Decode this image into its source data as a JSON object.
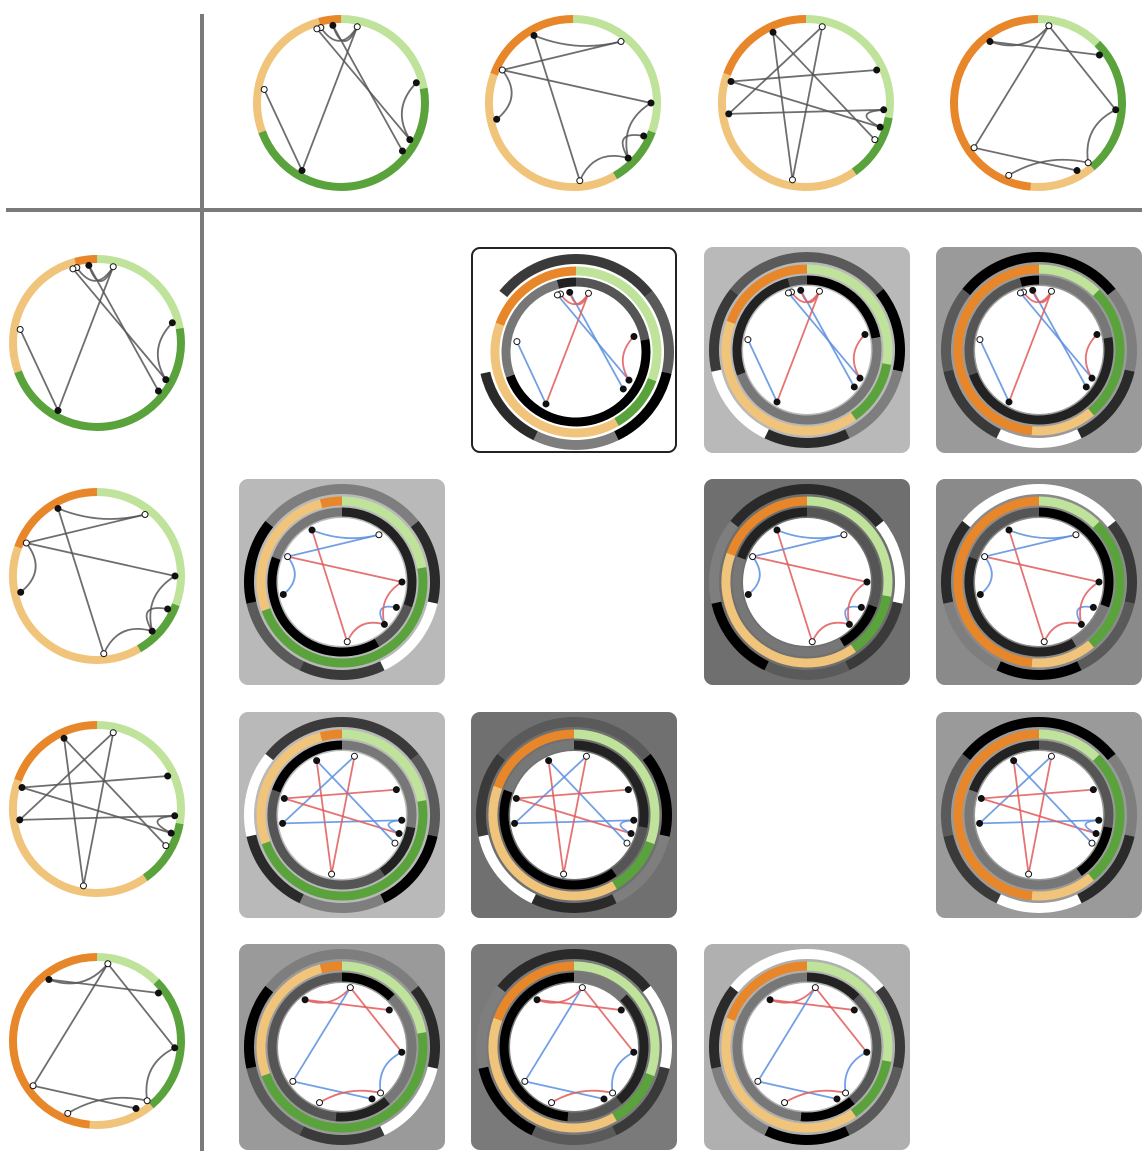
{
  "palette": {
    "dark_orange": "#e8862a",
    "light_orange": "#f0c47a",
    "light_green": "#bfe39b",
    "dark_green": "#5aa33c",
    "edge_gray": "#555555",
    "edge_red": "#e05a5a",
    "edge_blue": "#5a8ee0",
    "separator": "#7a7a7a"
  },
  "graphs": [
    {
      "id": "G1",
      "segments": [
        {
          "from": 0,
          "to": 0.34,
          "color": "dark_green"
        },
        {
          "from": 0.34,
          "to": 0.5,
          "color": "dark_green"
        },
        {
          "from": 0.5,
          "to": 0.72,
          "color": "light_orange"
        },
        {
          "from": 0.72,
          "to": 0.95,
          "color": "light_orange"
        },
        {
          "from": 0.95,
          "to": 1.0,
          "color": "dark_orange"
        }
      ],
      "segments_cw": [
        {
          "start": -90,
          "end": -10,
          "color": "light_green"
        },
        {
          "start": -10,
          "end": 160,
          "color": "dark_green"
        },
        {
          "start": 160,
          "end": 255,
          "color": "light_orange"
        },
        {
          "start": 255,
          "end": 270,
          "color": "dark_orange"
        }
      ],
      "nodes": [
        {
          "a": -105,
          "fill": "white"
        },
        {
          "a": -96,
          "fill": "black"
        },
        {
          "a": -78,
          "fill": "white"
        },
        {
          "a": -15,
          "fill": "black"
        },
        {
          "a": 28,
          "fill": "black"
        },
        {
          "a": 38,
          "fill": "black"
        },
        {
          "a": 120,
          "fill": "black"
        },
        {
          "a": 190,
          "fill": "white"
        },
        {
          "a": -108,
          "fill": "white"
        }
      ],
      "edges": [
        [
          0,
          2
        ],
        [
          1,
          5
        ],
        [
          2,
          6
        ],
        [
          8,
          4
        ],
        [
          3,
          4
        ],
        [
          7,
          6
        ],
        [
          1,
          2
        ]
      ]
    },
    {
      "id": "G2",
      "segments_cw": [
        {
          "start": -90,
          "end": 20,
          "color": "light_green"
        },
        {
          "start": 20,
          "end": 60,
          "color": "dark_green"
        },
        {
          "start": 60,
          "end": 200,
          "color": "light_orange"
        },
        {
          "start": 200,
          "end": 270,
          "color": "dark_orange"
        }
      ],
      "nodes": [
        {
          "a": -120,
          "fill": "black"
        },
        {
          "a": -52,
          "fill": "white"
        },
        {
          "a": 0,
          "fill": "black"
        },
        {
          "a": 25,
          "fill": "black"
        },
        {
          "a": 45,
          "fill": "black"
        },
        {
          "a": 85,
          "fill": "white"
        },
        {
          "a": 168,
          "fill": "black"
        },
        {
          "a": 205,
          "fill": "white"
        }
      ],
      "edges": [
        [
          0,
          5
        ],
        [
          1,
          7
        ],
        [
          2,
          7
        ],
        [
          3,
          4
        ],
        [
          2,
          4
        ],
        [
          6,
          7
        ],
        [
          5,
          4
        ],
        [
          0,
          1
        ]
      ]
    },
    {
      "id": "G3",
      "segments_cw": [
        {
          "start": -90,
          "end": 10,
          "color": "light_green"
        },
        {
          "start": 10,
          "end": 55,
          "color": "dark_green"
        },
        {
          "start": 55,
          "end": 200,
          "color": "light_orange"
        },
        {
          "start": 200,
          "end": 270,
          "color": "dark_orange"
        }
      ],
      "nodes": [
        {
          "a": -115,
          "fill": "black"
        },
        {
          "a": -78,
          "fill": "white"
        },
        {
          "a": -25,
          "fill": "black"
        },
        {
          "a": 5,
          "fill": "black"
        },
        {
          "a": 18,
          "fill": "black"
        },
        {
          "a": 28,
          "fill": "white"
        },
        {
          "a": 100,
          "fill": "white"
        },
        {
          "a": 172,
          "fill": "black"
        },
        {
          "a": 196,
          "fill": "black"
        }
      ],
      "edges": [
        [
          0,
          6
        ],
        [
          1,
          7
        ],
        [
          2,
          8
        ],
        [
          3,
          7
        ],
        [
          4,
          8
        ],
        [
          0,
          5
        ],
        [
          1,
          6
        ],
        [
          3,
          4
        ]
      ]
    },
    {
      "id": "G4",
      "segments_cw": [
        {
          "start": -90,
          "end": -45,
          "color": "light_green"
        },
        {
          "start": -45,
          "end": 50,
          "color": "dark_green"
        },
        {
          "start": 50,
          "end": 95,
          "color": "light_orange"
        },
        {
          "start": 95,
          "end": 270,
          "color": "dark_orange"
        }
      ],
      "nodes": [
        {
          "a": -128,
          "fill": "black"
        },
        {
          "a": -82,
          "fill": "white"
        },
        {
          "a": -38,
          "fill": "black"
        },
        {
          "a": 5,
          "fill": "black"
        },
        {
          "a": 50,
          "fill": "white"
        },
        {
          "a": 112,
          "fill": "white"
        },
        {
          "a": 145,
          "fill": "white"
        },
        {
          "a": 60,
          "fill": "black"
        }
      ],
      "edges": [
        [
          0,
          2
        ],
        [
          1,
          6
        ],
        [
          1,
          3
        ],
        [
          6,
          7
        ],
        [
          5,
          4
        ],
        [
          3,
          4
        ],
        [
          0,
          1
        ]
      ]
    }
  ],
  "comparisons": [
    {
      "row": 0,
      "col": 1,
      "bg": "#ffffff",
      "selected": true
    },
    {
      "row": 0,
      "col": 2,
      "bg": "#b9b9b9",
      "selected": false
    },
    {
      "row": 0,
      "col": 3,
      "bg": "#9a9a9a",
      "selected": false
    },
    {
      "row": 1,
      "col": 0,
      "bg": "#b9b9b9",
      "selected": false
    },
    {
      "row": 1,
      "col": 2,
      "bg": "#6f6f6f",
      "selected": false
    },
    {
      "row": 1,
      "col": 3,
      "bg": "#8a8a8a",
      "selected": false
    },
    {
      "row": 2,
      "col": 0,
      "bg": "#b9b9b9",
      "selected": false
    },
    {
      "row": 2,
      "col": 1,
      "bg": "#707070",
      "selected": false
    },
    {
      "row": 2,
      "col": 3,
      "bg": "#9a9a9a",
      "selected": false
    },
    {
      "row": 3,
      "col": 0,
      "bg": "#9a9a9a",
      "selected": false
    },
    {
      "row": 3,
      "col": 1,
      "bg": "#7a7a7a",
      "selected": false
    },
    {
      "row": 3,
      "col": 2,
      "bg": "#b0b0b0",
      "selected": false
    }
  ]
}
